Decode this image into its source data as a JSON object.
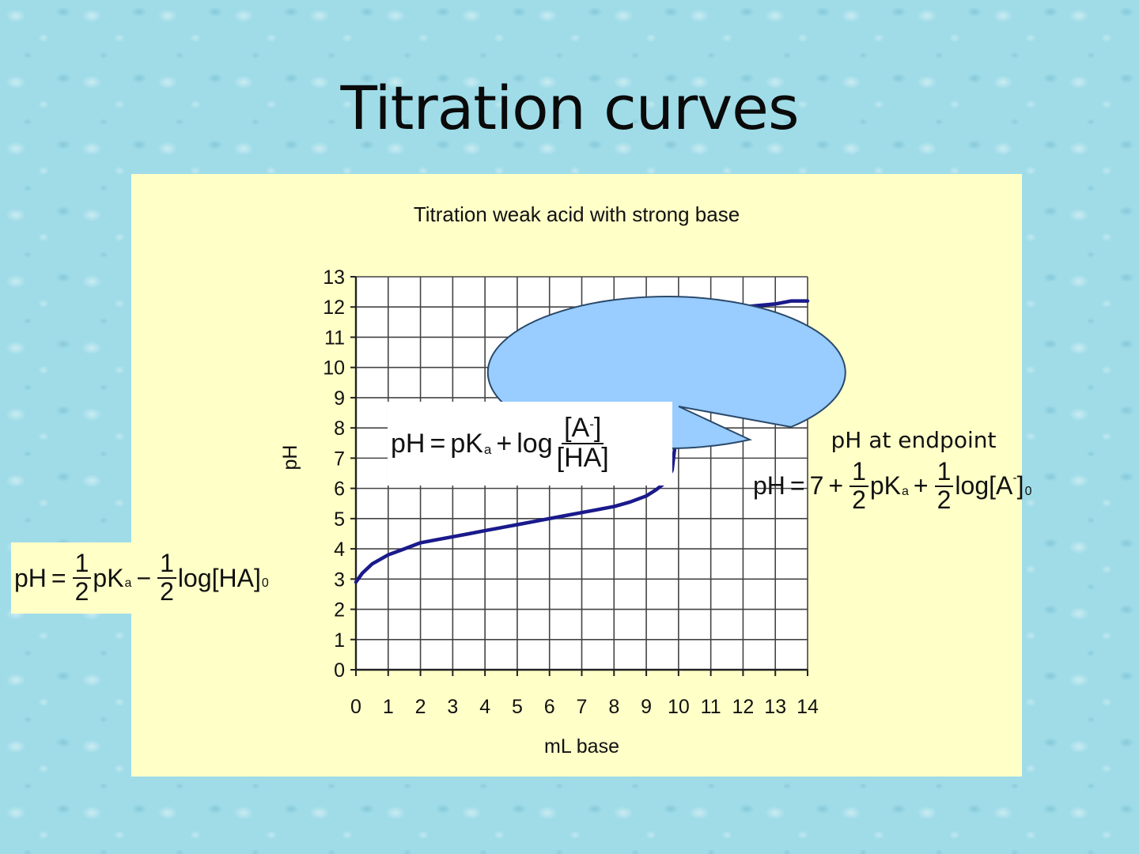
{
  "slide": {
    "title": "Titration curves"
  },
  "callout": {
    "heading": "pH at endpoint",
    "fill": "#99ccff"
  },
  "formulas": {
    "henderson_hasselbalch": {
      "lhs": "pH",
      "eq": "=",
      "term1": "pK",
      "sub1": "a",
      "plus": "+",
      "log": "log",
      "num": "[A",
      "num_sup": "-",
      "num_close": "]",
      "den": "[HA]"
    },
    "initial": {
      "lhs": "pH",
      "eq": "=",
      "half_num": "1",
      "half_den": "2",
      "term1": "pK",
      "sub1": "a",
      "minus": "−",
      "log": "log[HA]",
      "sub2": "0"
    },
    "endpoint": {
      "lhs": "pH",
      "eq": "=",
      "seven": "7",
      "plus": "+",
      "half_num": "1",
      "half_den": "2",
      "term1": "pK",
      "sub1": "a",
      "log": "log[A",
      "log_sup": "-",
      "log_close": "]",
      "sub2": "0"
    }
  },
  "chart_data": {
    "type": "line",
    "title": "Titration weak acid with strong base",
    "xlabel": "mL base",
    "ylabel": "pH",
    "xlim": [
      0,
      14
    ],
    "ylim": [
      0,
      13
    ],
    "xticks": [
      0,
      1,
      2,
      3,
      4,
      5,
      6,
      7,
      8,
      9,
      10,
      11,
      12,
      13,
      14
    ],
    "yticks": [
      0,
      1,
      2,
      3,
      4,
      5,
      6,
      7,
      8,
      9,
      10,
      11,
      12,
      13
    ],
    "grid": true,
    "line_color": "#1a1a8c",
    "series": [
      {
        "x": [
          0,
          0.2,
          0.5,
          1,
          1.5,
          2,
          2.5,
          3,
          3.5,
          4,
          4.5,
          5,
          5.5,
          6,
          6.5,
          7,
          7.5,
          8,
          8.5,
          9,
          9.3,
          9.6,
          9.8,
          9.9,
          9.95,
          10,
          10.05,
          10.1,
          10.3,
          10.6,
          11,
          11.5,
          12,
          12.5,
          13,
          13.5,
          14
        ],
        "y": [
          2.9,
          3.2,
          3.5,
          3.8,
          4.0,
          4.2,
          4.3,
          4.4,
          4.5,
          4.6,
          4.7,
          4.8,
          4.9,
          5.0,
          5.1,
          5.2,
          5.3,
          5.4,
          5.55,
          5.75,
          5.95,
          6.2,
          6.6,
          7.5,
          8.7,
          10.5,
          10.95,
          11.1,
          11.35,
          11.5,
          11.7,
          11.85,
          12.0,
          12.05,
          12.1,
          12.2,
          12.2
        ]
      }
    ]
  }
}
